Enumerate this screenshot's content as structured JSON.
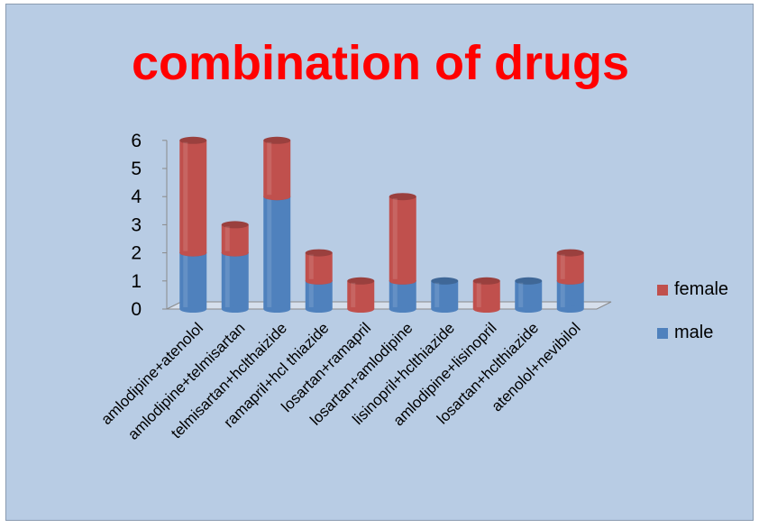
{
  "chart_data": {
    "type": "bar",
    "stacked": true,
    "title": "combination of drugs",
    "categories": [
      "amlodipine+atenolol",
      "amlodipine+telmisartan",
      "telmisartan+hclthaizide",
      "ramapril+hcl thiazide",
      "losartan+ramapril",
      "losartan+amlodipine",
      "lisinopril+hclthiazide",
      "amlodipine+lisinopril",
      "losartan+hclthiazide",
      "atenolol+nevibilol"
    ],
    "series": [
      {
        "name": "male",
        "color": "#4f81bd",
        "values": [
          2,
          2,
          4,
          1,
          0,
          1,
          1,
          0,
          1,
          1
        ]
      },
      {
        "name": "female",
        "color": "#c0504d",
        "values": [
          4,
          1,
          2,
          1,
          1,
          3,
          0,
          1,
          0,
          1
        ]
      }
    ],
    "yticks": [
      0,
      1,
      2,
      3,
      4,
      5,
      6
    ],
    "ylim": [
      0,
      6
    ],
    "legend_position": "right",
    "legend_order": [
      "female",
      "male"
    ],
    "background_color": "#b8cce4",
    "title_color": "#ff0000"
  }
}
